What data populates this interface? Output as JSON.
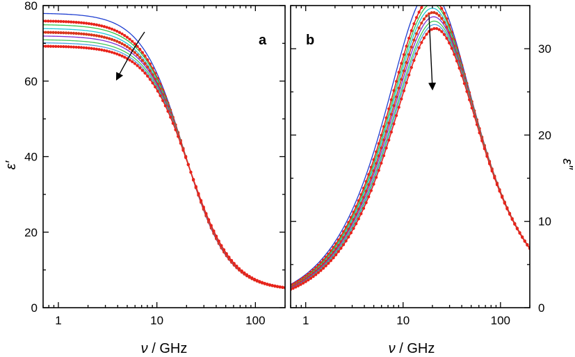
{
  "chart_data": [
    {
      "panel": "a",
      "type": "line",
      "quantity": "real",
      "title": "",
      "panel_label": "a",
      "xlabel_symbol": "ν",
      "xlabel_sep": " / ",
      "xlabel_unit": "GHz",
      "ylabel": "ε′",
      "xscale": "log",
      "xlim": [
        0.7,
        200
      ],
      "ylim": [
        0,
        80
      ],
      "x_ticks": [
        1,
        10,
        100
      ],
      "x_tick_labels": [
        "1",
        "10",
        "100"
      ],
      "y_ticks": [
        0,
        20,
        40,
        60,
        80
      ],
      "y_tick_labels": [
        "0",
        "20",
        "40",
        "60",
        "80"
      ],
      "y_axis_side": "left",
      "annotation": "arrow pointing down-left: decreasing static permittivity across the series"
    },
    {
      "panel": "b",
      "type": "line",
      "quantity": "imag",
      "title": "",
      "panel_label": "b",
      "xlabel_symbol": "ν",
      "xlabel_sep": " / ",
      "xlabel_unit": "GHz",
      "ylabel": "ε″",
      "xscale": "log",
      "xlim": [
        0.7,
        200
      ],
      "ylim": [
        0,
        35
      ],
      "x_ticks": [
        1,
        10,
        100
      ],
      "x_tick_labels": [
        "1",
        "10",
        "100"
      ],
      "y_ticks": [
        0,
        10,
        20,
        30
      ],
      "y_tick_labels": [
        "0",
        "10",
        "20",
        "30"
      ],
      "y_axis_side": "right",
      "annotation": "arrow pointing down at the loss peak: decreasing peak height across the series"
    }
  ],
  "series_model": {
    "model": "Debye",
    "eps_inf": 4.6,
    "curves": [
      {
        "eps_s": 78.0,
        "peak_ghz": 19.0,
        "color": "#1f3fd1",
        "markers": false
      },
      {
        "eps_s": 76.0,
        "peak_ghz": 19.5,
        "color": "#e8231b",
        "markers": true
      },
      {
        "eps_s": 75.0,
        "peak_ghz": 19.8,
        "color": "#33c24a",
        "markers": false
      },
      {
        "eps_s": 74.0,
        "peak_ghz": 20.0,
        "color": "#1fc6d8",
        "markers": false
      },
      {
        "eps_s": 73.0,
        "peak_ghz": 20.3,
        "color": "#d9361c",
        "markers": true
      },
      {
        "eps_s": 72.0,
        "peak_ghz": 20.6,
        "color": "#7b2fd1",
        "markers": false
      },
      {
        "eps_s": 71.0,
        "peak_ghz": 20.9,
        "color": "#41c95b",
        "markers": false
      },
      {
        "eps_s": 70.2,
        "peak_ghz": 21.1,
        "color": "#4aa0e0",
        "markers": false
      },
      {
        "eps_s": 69.3,
        "peak_ghz": 21.4,
        "color": "#e8231b",
        "markers": true
      }
    ]
  }
}
